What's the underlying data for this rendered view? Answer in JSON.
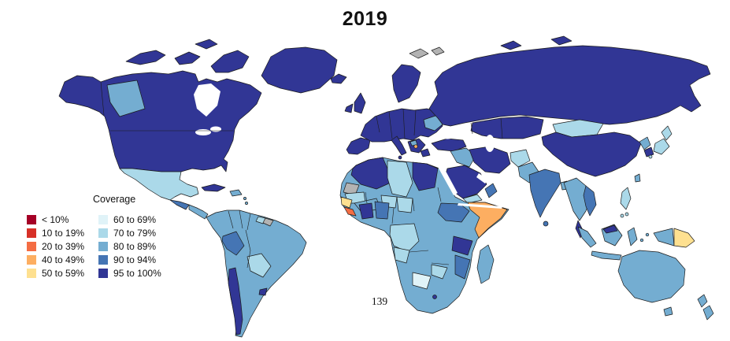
{
  "title": "2019",
  "page_number": "139",
  "legend": {
    "title": "Coverage",
    "items": [
      {
        "label": "< 10%",
        "color": "#a50026"
      },
      {
        "label": "10 to 19%",
        "color": "#d73027"
      },
      {
        "label": "20 to 39%",
        "color": "#f46d43"
      },
      {
        "label": "40 to 49%",
        "color": "#fdae61"
      },
      {
        "label": "50 to 59%",
        "color": "#fee090"
      },
      {
        "label": "60 to 69%",
        "color": "#e0f3f8"
      },
      {
        "label": "70 to 79%",
        "color": "#abd9e9"
      },
      {
        "label": "80 to 89%",
        "color": "#74add1"
      },
      {
        "label": "90 to 94%",
        "color": "#4575b4"
      },
      {
        "label": "95 to 100%",
        "color": "#313695"
      }
    ]
  },
  "chart_data": {
    "type": "heatmap",
    "subtype": "world-choropleth",
    "title": "2019",
    "legend_title": "Coverage",
    "legend_position": "left-middle",
    "bands": [
      "< 10%",
      "10 to 19%",
      "20 to 39%",
      "40 to 49%",
      "50 to 59%",
      "60 to 69%",
      "70 to 79%",
      "80 to 89%",
      "90 to 94%",
      "95 to 100%"
    ],
    "band_colors": [
      "#a50026",
      "#d73027",
      "#f46d43",
      "#fdae61",
      "#fee090",
      "#e0f3f8",
      "#abd9e9",
      "#74add1",
      "#4575b4",
      "#313695"
    ],
    "no_data_color": "#b3b3b3",
    "palette": {
      "b_lt10": "#a50026",
      "b10_19": "#d73027",
      "b20_39": "#f46d43",
      "b40_49": "#fdae61",
      "b50_59": "#fee090",
      "b60_69": "#e0f3f8",
      "b70_79": "#abd9e9",
      "b80_89": "#74add1",
      "b90_94": "#4575b4",
      "b95_100": "#313695",
      "no_data": "#b3b3b3",
      "water": "#ffffff"
    },
    "region_bands": {
      "greenland": "95 to 100%",
      "canada": "95 to 100%",
      "western_canada": "80 to 89%",
      "united_states": "95 to 100%",
      "mexico": "70 to 79%",
      "cuba": "95 to 100%",
      "hispaniola": "80 to 89%",
      "central_america_north": "90 to 94%",
      "central_america_south": "80 to 89%",
      "colombia_venezuela": "80 to 89%",
      "peru": "90 to 94%",
      "brazil": "80 to 89%",
      "bolivia_paraguay": "70 to 79%",
      "chile": "95 to 100%",
      "uruguay": "95 to 100%",
      "guyana_suriname": "70 to 79%",
      "french_guiana": "no data",
      "iceland": "95 to 100%",
      "united_kingdom": "95 to 100%",
      "ireland": "95 to 100%",
      "scandinavia": "95 to 100%",
      "western_europe": "95 to 100%",
      "iberia": "95 to 100%",
      "italy": "95 to 100%",
      "balkans": "95 to 100%",
      "balkans_small_area": "40 to 49%",
      "ukraine_area": "80 to 89%",
      "greece": "95 to 100%",
      "russia": "95 to 100%",
      "kazakhstan_central_asia": "95 to 100%",
      "turkey": "95 to 100%",
      "syria_iraq": "80 to 89%",
      "saudi_arabia": "95 to 100%",
      "yemen": "70 to 79%",
      "oman": "90 to 94%",
      "iran": "95 to 100%",
      "afghanistan": "70 to 79%",
      "pakistan": "80 to 89%",
      "india": "90 to 94%",
      "sri_lanka": "90 to 94%",
      "bangladesh": "80 to 89%",
      "myanmar_thailand_laos": "80 to 89%",
      "vietnam": "90 to 94%",
      "malaysia": "95 to 100%",
      "mongolia": "70 to 79%",
      "china": "95 to 100%",
      "north_korea": "80 to 89%",
      "south_korea": "95 to 100%",
      "japan": "70 to 79%",
      "taiwan": "80 to 89%",
      "philippines": "70 to 79%",
      "indonesia": "80 to 89%",
      "papua_new_guinea": "50 to 59%",
      "australia": "80 to 89%",
      "new_zealand": "80 to 89%",
      "morocco_algeria_tunisia": "95 to 100%",
      "western_sahara": "no data",
      "libya": "70 to 79%",
      "egypt": "95 to 100%",
      "mauritania": "70 to 79%",
      "mali": "80 to 89%",
      "niger": "70 to 79%",
      "chad": "70 to 79%",
      "sudan": "80 to 89%",
      "ethiopia": "90 to 94%",
      "somalia": "40 to 49%",
      "guinea": "50 to 59%",
      "sierra_leone_liberia": "20 to 39%",
      "ghana_burkina_faso": "95 to 100%",
      "nigeria": "90 to 94%",
      "dr_congo": "70 to 79%",
      "angola": "70 to 79%",
      "tanzania": "95 to 100%",
      "kenya": "80 to 89%",
      "zambia": "80 to 89%",
      "zimbabwe": "70 to 79%",
      "botswana": "60 to 69%",
      "mozambique": "90 to 94%",
      "south_africa": "80 to 89%",
      "lesotho": "95 to 100%",
      "madagascar": "80 to 89%",
      "svalbard": "no data"
    }
  }
}
